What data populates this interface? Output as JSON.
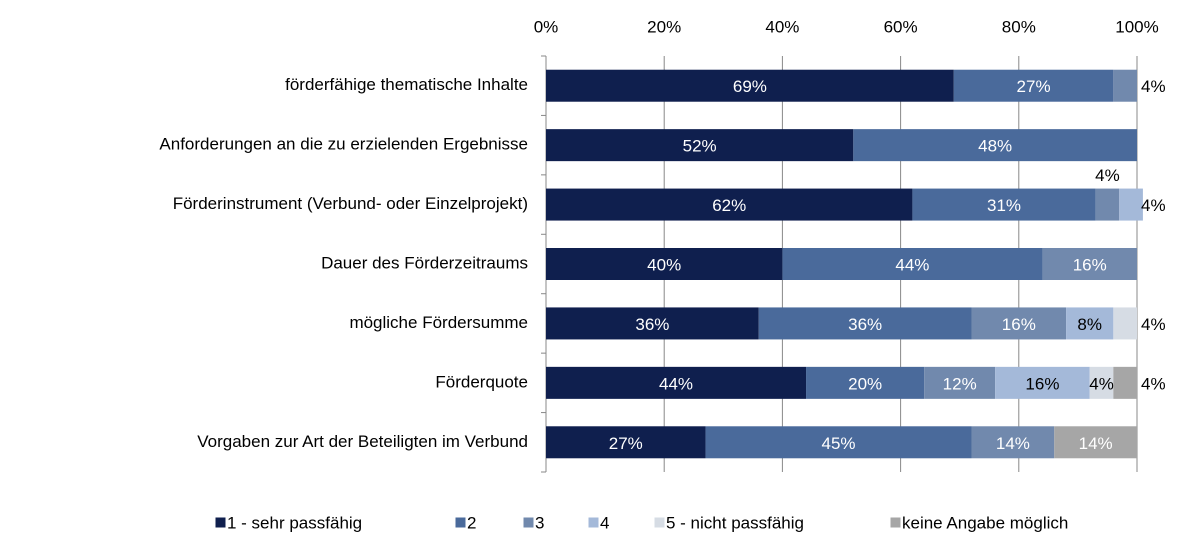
{
  "chart_data": {
    "type": "stacked_bar_horizontal",
    "categories": [
      "förderfähige thematische Inhalte",
      "Anforderungen an die zu erzielenden Ergebnisse",
      "Förderinstrument (Verbund- oder Einzelprojekt)",
      "Dauer des Förderzeitraums",
      "mögliche Fördersumme",
      "Förderquote",
      "Vorgaben zur Art der Beteiligten im Verbund"
    ],
    "series": [
      {
        "name": "1 - sehr passfähig",
        "color": "#0f1f4e",
        "label_color": "#ffffff",
        "values": [
          69,
          52,
          62,
          40,
          36,
          44,
          27
        ],
        "value_labels": [
          "69%",
          "52%",
          "62%",
          "40%",
          "36%",
          "44%",
          "27%"
        ]
      },
      {
        "name": "2",
        "color": "#4a6a9b",
        "label_color": "#ffffff",
        "values": [
          27,
          48,
          31,
          44,
          36,
          20,
          45
        ],
        "value_labels": [
          "27%",
          "48%",
          "31%",
          "44%",
          "36%",
          "20%",
          "45%"
        ]
      },
      {
        "name": "3",
        "color": "#7189ad",
        "label_color": "#ffffff",
        "values": [
          4,
          null,
          4,
          16,
          16,
          12,
          14
        ],
        "value_labels": [
          "4%",
          null,
          "4%",
          "16%",
          "16%",
          "12%",
          "14%"
        ]
      },
      {
        "name": "4",
        "color": "#a4b9d9",
        "label_color": "#000000",
        "values": [
          null,
          null,
          4,
          null,
          8,
          16,
          null
        ],
        "value_labels": [
          null,
          null,
          "4%",
          null,
          "8%",
          "16%",
          null
        ]
      },
      {
        "name": "5 - nicht passfähig",
        "color": "#d6dce4",
        "label_color": "#000000",
        "values": [
          null,
          null,
          null,
          null,
          4,
          4,
          null
        ],
        "value_labels": [
          null,
          null,
          null,
          null,
          "4%",
          "4%",
          null
        ]
      },
      {
        "name": "keine Angabe möglich",
        "color": "#a6a6a6",
        "label_color": "#ffffff",
        "values": [
          null,
          null,
          null,
          null,
          null,
          4,
          14
        ],
        "value_labels": [
          null,
          null,
          null,
          null,
          null,
          "4%",
          "14%"
        ]
      }
    ],
    "xlim": [
      0,
      100
    ],
    "xticks": [
      {
        "value": 0,
        "label": "0%"
      },
      {
        "value": 20,
        "label": "20%"
      },
      {
        "value": 40,
        "label": "40%"
      },
      {
        "value": 60,
        "label": "60%"
      },
      {
        "value": 80,
        "label": "80%"
      },
      {
        "value": 100,
        "label": "100%"
      }
    ],
    "grid": true,
    "legend": "bottom"
  }
}
